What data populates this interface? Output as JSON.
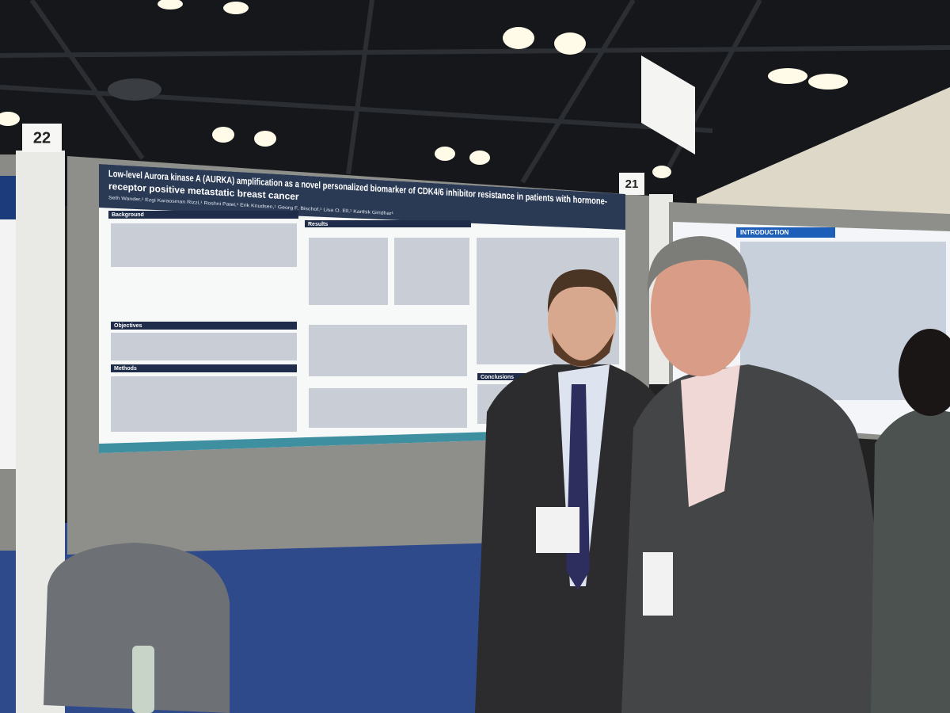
{
  "scene": {
    "booth_numbers": [
      "22",
      "21"
    ],
    "poster": {
      "title_lines": [
        "Low-level Aurora kinase A (AURKA) amplification as a novel personalized biomarker of CDK4/6 inhibitor resistance in patients with hormone-",
        "receptor positive metastatic breast cancer"
      ],
      "authors": "Seth Wander,¹ Ezgi Karaosman Rizzi,¹ Roshni Patel,¹ Erik Knudsen,¹ Georg F. Bischof,¹ Lisa O. Ell,¹ Karthik Giridhar¹",
      "sections": [
        "Background",
        "Objectives",
        "Methods",
        "Results",
        "Conclusions"
      ]
    },
    "neighbor_poster": {
      "section": "INTRODUCTION"
    }
  }
}
